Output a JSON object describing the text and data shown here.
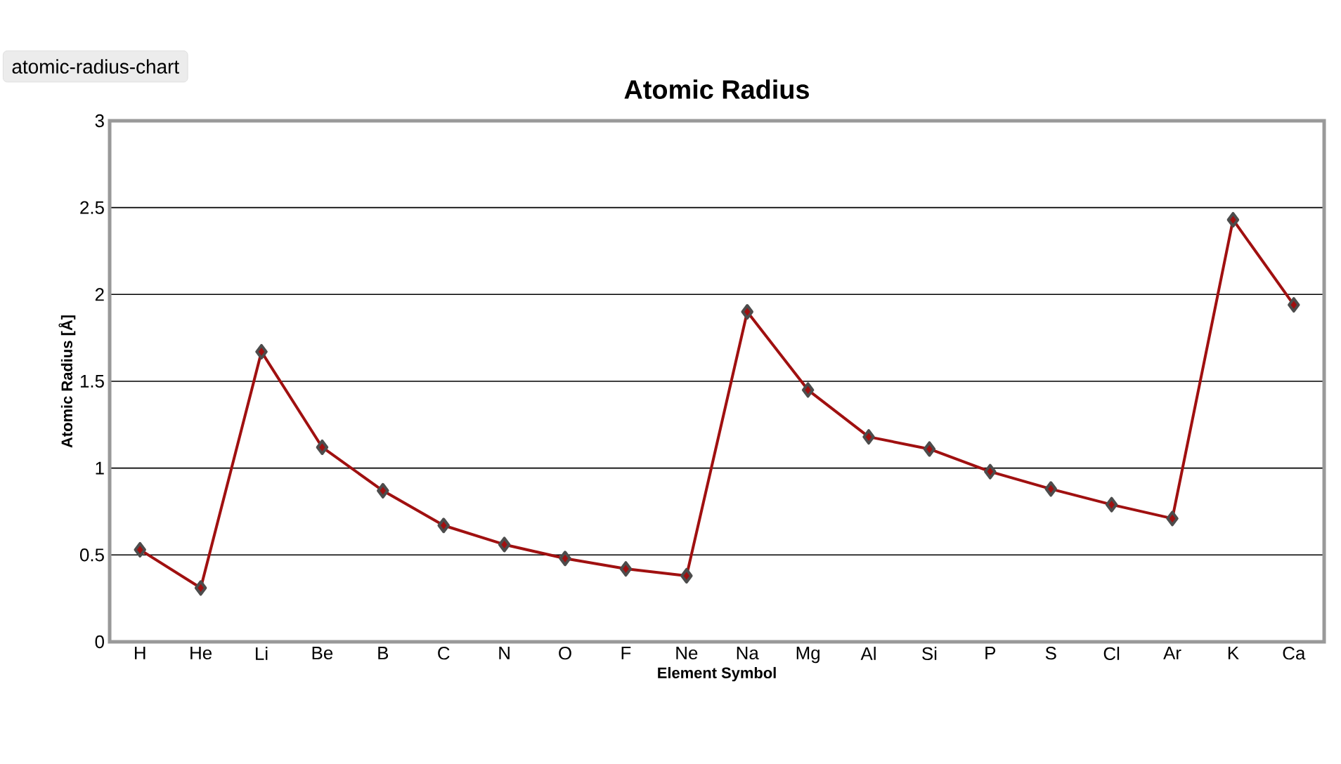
{
  "chart_data": {
    "type": "line",
    "title": "Atomic Radius",
    "xlabel": "Element Symbol",
    "ylabel": "Atomic Radius [Å]",
    "categories": [
      "H",
      "He",
      "Li",
      "Be",
      "B",
      "C",
      "N",
      "O",
      "F",
      "Ne",
      "Na",
      "Mg",
      "Al",
      "Si",
      "P",
      "S",
      "Cl",
      "Ar",
      "K",
      "Ca"
    ],
    "series": [
      {
        "color": "#a01010",
        "values": [
          0.53,
          0.31,
          1.67,
          1.12,
          0.87,
          0.67,
          0.56,
          0.48,
          0.42,
          0.38,
          1.9,
          1.45,
          1.18,
          1.11,
          0.98,
          0.88,
          0.79,
          0.71,
          2.43,
          1.94
        ]
      }
    ],
    "ylim": [
      0,
      3
    ],
    "yticks": [
      0,
      0.5,
      1,
      1.5,
      2,
      2.5,
      3
    ],
    "grid": "y",
    "marker": "diamond",
    "line_style": "solid",
    "annotations": [
      "atomic-radius-chart"
    ]
  }
}
